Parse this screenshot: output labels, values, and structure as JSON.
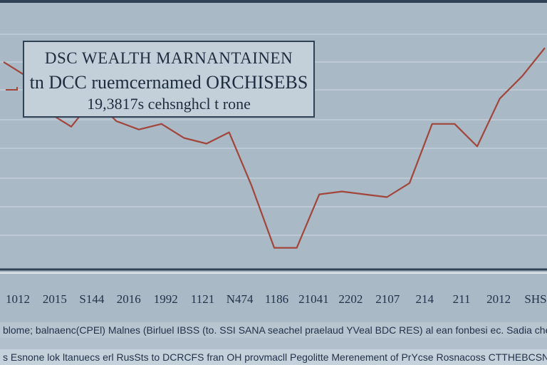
{
  "chart_data": {
    "type": "line",
    "title_lines": [
      "DSC WEALTH MARNANTAINEN",
      "tn DCC ruemcernamed ORCHISEBS",
      "19,3817s cehsnghcl t rone"
    ],
    "x_tick_labels": [
      "1012",
      "2015",
      "S144",
      "2016",
      "1992",
      "1121",
      "N474",
      "1186",
      "21041",
      "2202",
      "2107",
      "214",
      "211",
      "2012",
      "SHS"
    ],
    "xlabel": "",
    "ylabel": "",
    "y": [
      78,
      73,
      60,
      55,
      65,
      57,
      54,
      56,
      51,
      49,
      53,
      34,
      12,
      12,
      31,
      32,
      31,
      30,
      35,
      56,
      56,
      48,
      65,
      73,
      83
    ],
    "ylim": [
      0,
      100
    ],
    "grid": true,
    "line_color": "#a2453a",
    "background_color": "#a9b9c6",
    "grid_color": "#c4d0da"
  },
  "captions": {
    "line1": "blome; balnaenc(CPEl) Malnes (Birluel IBSS (to. SSI SANA seachel praelaud YVeal BDC RES) al ean fonbesi ec. Sadia chef I",
    "line2": "s Esnone lok ltanuecs erl RusSts to DCRCFS fran OH provmacll Pegolitte Merenement of PrYcse Rosnacoss CTTHEBCSNTH"
  }
}
